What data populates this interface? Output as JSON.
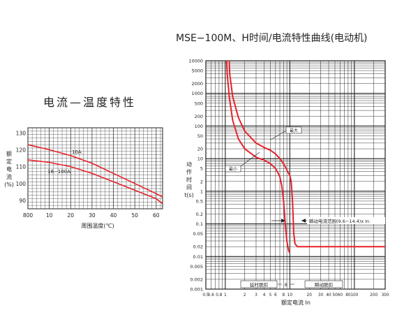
{
  "left_chart_title": "电流—温度特性",
  "right_chart_title": "MSE−100M、H时间/电流特性曲线(电动机)",
  "colors": {
    "curve": "#e8202a",
    "grid": "#222222"
  },
  "chart_data": [
    {
      "type": "line",
      "title": "电流—温度特性",
      "xlabel": "周围温度(℃)",
      "ylabel": "额定电流(%)",
      "xlim": [
        0,
        63
      ],
      "ylim": [
        85,
        133
      ],
      "x_tick_labels": [
        "800",
        "10",
        "20",
        "30",
        "40",
        "50",
        "60"
      ],
      "y_tick_labels": [
        "130",
        "120",
        "110",
        "100",
        "90"
      ],
      "grid": true,
      "series": [
        {
          "name": "10A",
          "x": [
            0,
            10,
            20,
            30,
            40,
            50,
            60,
            63
          ],
          "y": [
            123,
            120,
            116.5,
            112,
            106,
            100,
            94,
            92
          ]
        },
        {
          "name": "16−100A",
          "x": [
            0,
            10,
            20,
            30,
            40,
            50,
            60,
            63
          ],
          "y": [
            114,
            112.5,
            110,
            106,
            101,
            96,
            91,
            88
          ]
        }
      ]
    },
    {
      "type": "line",
      "title": "MSE−100M、H时间/电流特性曲线(电动机)",
      "xlabel": "额定电流 In",
      "ylabel": "动作时间 t(s)",
      "x_scale": "log",
      "y_scale": "log",
      "xlim": [
        0.5,
        300
      ],
      "ylim": [
        0.001,
        10000
      ],
      "x_tick_labels": [
        "0.5",
        "0.6",
        "0.8",
        "1",
        "2",
        "3",
        "4",
        "5",
        "6",
        "8",
        "10",
        "20",
        "30",
        "40",
        "50",
        "60",
        "80",
        "100",
        "200",
        "300"
      ],
      "y_tick_labels": [
        "10000",
        "5000",
        "2000",
        "1000",
        "500",
        "200",
        "100",
        "50",
        "20",
        "10",
        "5",
        "2",
        "1",
        "0.5",
        "0.2",
        "0.1",
        "0.05",
        "0.02",
        "0.01",
        "0.005",
        "0.002",
        "0.001"
      ],
      "grid": true,
      "series": [
        {
          "name": "最大",
          "x": [
            1.15,
            1.17,
            1.3,
            1.6,
            2,
            3,
            4,
            5,
            6,
            7,
            8,
            9,
            10,
            10.5,
            11,
            11.5,
            12,
            13,
            20,
            50,
            100,
            300
          ],
          "y": [
            10000,
            4000,
            800,
            180,
            70,
            30,
            22,
            18,
            14,
            10,
            7,
            4.5,
            3,
            2,
            0.5,
            0.05,
            0.025,
            0.02,
            0.02,
            0.02,
            0.02,
            0.02
          ]
        },
        {
          "name": "最小",
          "x": [
            1.05,
            1.07,
            1.15,
            1.3,
            1.6,
            2,
            3,
            4,
            5,
            6,
            6.5,
            7,
            7.5,
            8,
            8.5,
            9,
            9.6,
            10
          ],
          "y": [
            10000,
            4000,
            800,
            150,
            40,
            20,
            11,
            9,
            7,
            5,
            3.8,
            2.8,
            1.5,
            0.5,
            0.1,
            0.03,
            0.015,
            0.013
          ]
        }
      ],
      "annotations": {
        "max_label": "最大",
        "min_label": "最小",
        "instant_range": "瞬动电流范围(9.6−14.4)x In",
        "delay_trip": "延时脱扣",
        "instant_trip": "瞬动脱扣",
        "delay_mark": "8"
      }
    }
  ]
}
